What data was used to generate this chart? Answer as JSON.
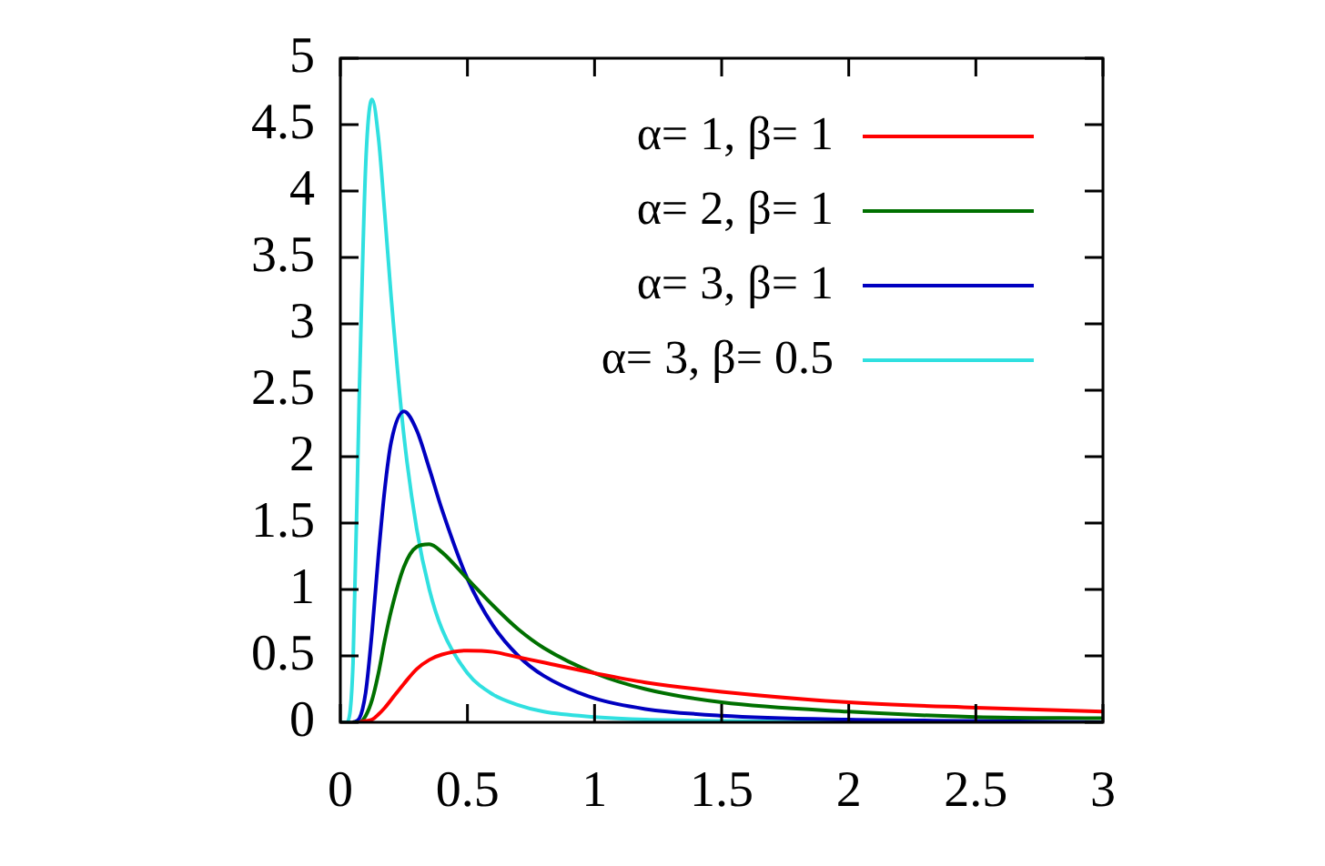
{
  "chart_data": {
    "type": "line",
    "x": [
      0,
      0.025,
      0.05,
      0.075,
      0.1,
      0.125,
      0.15,
      0.175,
      0.2,
      0.25,
      0.3,
      0.35,
      0.4,
      0.5,
      0.6,
      0.7,
      0.8,
      1,
      1.2,
      1.5,
      2,
      2.5,
      3
    ],
    "series": [
      {
        "name": "α= 1, β= 1",
        "color": "#ff0000",
        "values": [
          null,
          null,
          null,
          0,
          0.01,
          0.02,
          0.06,
          0.11,
          0.17,
          0.29,
          0.4,
          0.47,
          0.51,
          0.54,
          0.53,
          0.49,
          0.45,
          0.37,
          0.3,
          0.23,
          0.15,
          0.11,
          0.08
        ]
      },
      {
        "name": "α= 2, β= 1",
        "color": "#007000",
        "values": [
          null,
          null,
          0,
          0,
          0.05,
          0.17,
          0.37,
          0.62,
          0.84,
          1.17,
          1.32,
          1.34,
          1.28,
          1.08,
          0.88,
          0.7,
          0.56,
          0.37,
          0.25,
          0.15,
          0.08,
          0.04,
          0.03
        ]
      },
      {
        "name": "α= 3, β= 1",
        "color": "#0000c0",
        "values": [
          null,
          null,
          0,
          0.03,
          0.23,
          0.69,
          1.26,
          1.76,
          2.11,
          2.34,
          2.2,
          1.91,
          1.6,
          1.08,
          0.73,
          0.5,
          0.35,
          0.18,
          0.1,
          0.05,
          0.02,
          0.01,
          0
        ]
      },
      {
        "name": "α= 3, β= 0.5",
        "color": "#30e0e0",
        "values": [
          0,
          0,
          0.45,
          2.51,
          4.21,
          4.69,
          4.4,
          3.82,
          3.2,
          2.16,
          1.46,
          1,
          0.7,
          0.37,
          0.21,
          0.13,
          0.08,
          0.04,
          0.02,
          0.01,
          0,
          null,
          null
        ]
      }
    ],
    "xlim": [
      0,
      3
    ],
    "xticks": [
      0,
      0.5,
      1,
      1.5,
      2,
      2.5,
      3
    ],
    "ylim": [
      0,
      5
    ],
    "yticks": [
      0,
      0.5,
      1,
      1.5,
      2,
      2.5,
      3,
      3.5,
      4,
      4.5,
      5
    ],
    "legend": "top right",
    "marker": "none",
    "line_style": "solid"
  }
}
